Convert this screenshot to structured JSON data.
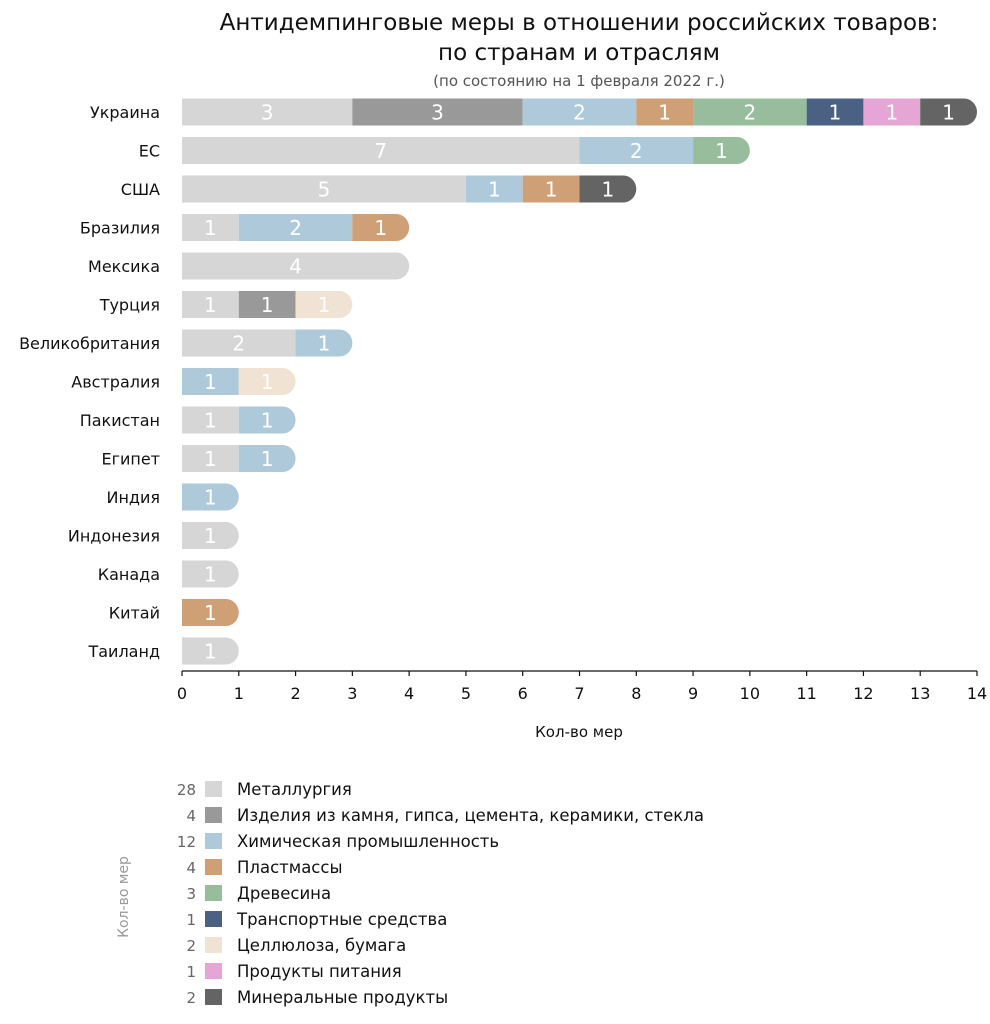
{
  "chart_data": {
    "type": "bar",
    "orientation": "horizontal",
    "stacked": true,
    "title_line1": "Антидемпинговые меры в отношении российских товаров:",
    "title_line2": "по странам и отраслям",
    "subtitle": "(по состоянию на 1 февраля 2022 г.)",
    "xlabel": "Кол-во мер",
    "legend_axis_label": "Кол-во мер",
    "xlim": [
      0,
      14
    ],
    "xticks": [
      "0",
      "1",
      "2",
      "3",
      "4",
      "5",
      "6",
      "7",
      "8",
      "9",
      "10",
      "11",
      "12",
      "13",
      "14"
    ],
    "grid": false,
    "legend_position": "bottom",
    "categories": [
      "Украина",
      "ЕС",
      "США",
      "Бразилия",
      "Мексика",
      "Турция",
      "Великобритания",
      "Австралия",
      "Пакистан",
      "Египет",
      "Индия",
      "Индонезия",
      "Канада",
      "Китай",
      "Таиланд"
    ],
    "series": [
      {
        "name": "Металлургия",
        "total": 28,
        "color": "#d6d6d6",
        "values": [
          3,
          7,
          5,
          1,
          4,
          1,
          2,
          0,
          1,
          1,
          0,
          1,
          1,
          0,
          1
        ]
      },
      {
        "name": "Изделия из камня, гипса, цемента, керамики, стекла",
        "total": 4,
        "color": "#999999",
        "values": [
          3,
          0,
          0,
          0,
          0,
          1,
          0,
          0,
          0,
          0,
          0,
          0,
          0,
          0,
          0
        ]
      },
      {
        "name": "Химическая промышленность",
        "total": 12,
        "color": "#adc9da",
        "values": [
          2,
          2,
          1,
          2,
          0,
          0,
          1,
          1,
          1,
          1,
          1,
          0,
          0,
          0,
          0
        ]
      },
      {
        "name": "Пластмассы",
        "total": 4,
        "color": "#cf9f76",
        "values": [
          1,
          0,
          1,
          1,
          0,
          0,
          0,
          0,
          0,
          0,
          0,
          0,
          0,
          1,
          0
        ]
      },
      {
        "name": "Древесина",
        "total": 3,
        "color": "#98bd9c",
        "values": [
          2,
          1,
          0,
          0,
          0,
          0,
          0,
          0,
          0,
          0,
          0,
          0,
          0,
          0,
          0
        ]
      },
      {
        "name": "Транспортные средства",
        "total": 1,
        "color": "#4a6183",
        "values": [
          1,
          0,
          0,
          0,
          0,
          0,
          0,
          0,
          0,
          0,
          0,
          0,
          0,
          0,
          0
        ]
      },
      {
        "name": "Целлюлоза, бумага",
        "total": 2,
        "color": "#f1e3d4",
        "values": [
          0,
          0,
          0,
          0,
          0,
          1,
          0,
          1,
          0,
          0,
          0,
          0,
          0,
          0,
          0
        ]
      },
      {
        "name": "Продукты питания",
        "total": 1,
        "color": "#e6a6d5",
        "values": [
          1,
          0,
          0,
          0,
          0,
          0,
          0,
          0,
          0,
          0,
          0,
          0,
          0,
          0,
          0
        ]
      },
      {
        "name": "Минеральные продукты",
        "total": 2,
        "color": "#646464",
        "values": [
          1,
          0,
          1,
          0,
          0,
          0,
          0,
          0,
          0,
          0,
          0,
          0,
          0,
          0,
          0
        ]
      }
    ]
  }
}
